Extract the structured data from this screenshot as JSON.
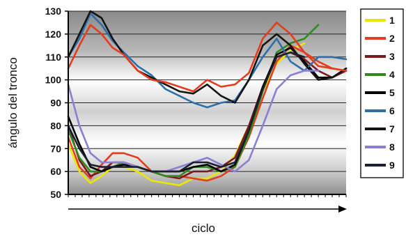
{
  "chart_data": {
    "type": "line",
    "xlabel": "ciclo",
    "ylabel": "ángulo del tronco",
    "ylim": [
      50,
      130
    ],
    "yticks": [
      50,
      60,
      70,
      80,
      90,
      100,
      110,
      120,
      130
    ],
    "xlim": [
      0,
      100
    ],
    "grid": true,
    "legend_position": "right",
    "series": [
      {
        "name": "1",
        "color": "#e8e800",
        "x": [
          0,
          4,
          8,
          12,
          16,
          20,
          25,
          30,
          35,
          40,
          45,
          50,
          55,
          60,
          65,
          70,
          75,
          80,
          85,
          90,
          95,
          100
        ],
        "y": [
          72,
          60,
          55,
          58,
          62,
          62,
          60,
          56,
          55,
          54,
          57,
          57,
          60,
          67,
          80,
          95,
          107,
          113,
          116,
          null,
          null,
          null
        ]
      },
      {
        "name": "2",
        "color": "#e63c1e",
        "x": [
          0,
          4,
          8,
          12,
          16,
          20,
          25,
          30,
          35,
          40,
          45,
          50,
          55,
          60,
          65,
          70,
          75,
          80,
          85,
          90,
          95,
          100
        ],
        "y": [
          75,
          62,
          57,
          63,
          68,
          68,
          66,
          60,
          58,
          58,
          57,
          56,
          58,
          62,
          75,
          92,
          108,
          115,
          112,
          108,
          105,
          104
        ]
      },
      {
        "name": "3",
        "color": "#7a1a1a",
        "x": [
          0,
          4,
          8,
          12,
          16,
          20,
          25,
          30,
          35,
          40,
          45,
          50,
          55,
          60,
          65,
          70,
          75,
          80,
          85,
          90,
          95,
          100
        ],
        "y": [
          80,
          65,
          58,
          60,
          64,
          64,
          62,
          60,
          58,
          57,
          60,
          60,
          62,
          66,
          80,
          97,
          110,
          112,
          109,
          104,
          101,
          104
        ]
      },
      {
        "name": "4",
        "color": "#2e8b1e",
        "x": [
          0,
          4,
          8,
          12,
          16,
          20,
          25,
          30,
          35,
          40,
          45,
          50,
          55,
          60,
          65,
          70,
          75,
          80,
          85,
          90,
          95,
          100
        ],
        "y": [
          78,
          66,
          60,
          60,
          62,
          64,
          62,
          60,
          58,
          58,
          62,
          62,
          60,
          62,
          76,
          95,
          112,
          116,
          118,
          124,
          null,
          null
        ]
      },
      {
        "name": "5",
        "color": "#000000",
        "x": [
          0,
          4,
          8,
          12,
          16,
          20,
          25,
          30,
          35,
          40,
          45,
          50,
          55,
          60,
          65,
          70,
          75,
          80,
          85,
          90,
          95,
          100
        ],
        "y": [
          84,
          72,
          62,
          60,
          62,
          63,
          62,
          60,
          60,
          60,
          62,
          63,
          60,
          63,
          78,
          97,
          111,
          114,
          108,
          101,
          101,
          105
        ]
      },
      {
        "name": "6",
        "color": "#2d6fa8",
        "x": [
          0,
          4,
          8,
          12,
          16,
          20,
          25,
          30,
          35,
          40,
          45,
          50,
          55,
          60,
          65,
          70,
          75,
          80,
          85,
          90,
          95,
          100
        ],
        "y": [
          110,
          118,
          129,
          124,
          117,
          112,
          106,
          102,
          96,
          93,
          90,
          88,
          90,
          91,
          100,
          110,
          118,
          108,
          104,
          110,
          110,
          109
        ]
      },
      {
        "name": "7",
        "color": "#141414",
        "x": [
          0,
          4,
          8,
          12,
          16,
          20,
          25,
          30,
          35,
          40,
          45,
          50,
          55,
          60,
          65,
          70,
          75,
          80,
          85,
          90,
          95,
          100
        ],
        "y": [
          110,
          120,
          130,
          127,
          118,
          111,
          104,
          101,
          98,
          95,
          94,
          98,
          93,
          90,
          100,
          115,
          120,
          115,
          107,
          100,
          101,
          105
        ]
      },
      {
        "name": "8",
        "color": "#8a7fd0",
        "x": [
          0,
          4,
          8,
          12,
          16,
          20,
          25,
          30,
          35,
          40,
          45,
          50,
          55,
          60,
          65,
          70,
          75,
          80,
          85,
          90,
          95,
          100
        ],
        "y": [
          98,
          80,
          68,
          64,
          64,
          64,
          62,
          60,
          60,
          62,
          64,
          66,
          63,
          60,
          65,
          80,
          96,
          102,
          104,
          104,
          null,
          null
        ]
      },
      {
        "name": "9",
        "color": "#1a2030",
        "x": [
          0,
          4,
          8,
          12,
          16,
          20,
          25,
          30,
          35,
          40,
          45,
          50,
          55,
          60,
          65,
          70,
          75,
          80,
          85,
          90,
          95,
          100
        ],
        "y": [
          80,
          70,
          63,
          62,
          62,
          62,
          62,
          60,
          60,
          60,
          64,
          64,
          62,
          64,
          78,
          96,
          110,
          112,
          110,
          null,
          null,
          null
        ]
      }
    ],
    "series_top": [
      {
        "name": "2",
        "color": "#e63c1e",
        "x": [
          0,
          4,
          8,
          12,
          16,
          20,
          25,
          30,
          35,
          40,
          45,
          50,
          55,
          60,
          65,
          70,
          75,
          80,
          85,
          90,
          95,
          100
        ],
        "y": [
          105,
          115,
          124,
          120,
          114,
          111,
          104,
          100,
          99,
          97,
          95,
          100,
          97,
          98,
          103,
          118,
          125,
          120,
          112,
          106,
          105,
          104
        ]
      }
    ]
  }
}
